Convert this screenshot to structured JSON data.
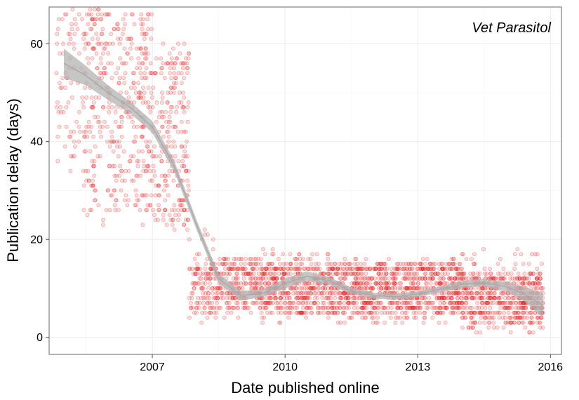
{
  "chart_data": {
    "type": "scatter",
    "title": "",
    "annotation": "Vet Parasitol",
    "xlabel": "Date published online",
    "ylabel": "Publication delay (days)",
    "xlim": [
      "2004-09-01",
      "2016-04-01"
    ],
    "ylim": [
      -3.5,
      67.5
    ],
    "x_ticks": [
      {
        "date": "2007-01-01",
        "label": "2007"
      },
      {
        "date": "2010-01-01",
        "label": "2010"
      },
      {
        "date": "2013-01-01",
        "label": "2013"
      },
      {
        "date": "2016-01-01",
        "label": "2016"
      }
    ],
    "y_ticks": [
      0,
      20,
      40,
      60
    ],
    "grid": true,
    "point_color": "#e31a1c",
    "point_alpha": 0.15,
    "smooth_line_color": "#aaaaaa",
    "smooth_band_color": "#b3b3b3",
    "smooth_fit": [
      {
        "x": "2005-01-01",
        "y": 56,
        "lo": 53,
        "hi": 59
      },
      {
        "x": "2005-07-01",
        "y": 53.5,
        "lo": 51.5,
        "hi": 55.5
      },
      {
        "x": "2006-01-01",
        "y": 50,
        "lo": 48.5,
        "hi": 51.5
      },
      {
        "x": "2006-07-01",
        "y": 47,
        "lo": 45.8,
        "hi": 48.2
      },
      {
        "x": "2007-01-01",
        "y": 43,
        "lo": 41.8,
        "hi": 44.2
      },
      {
        "x": "2007-07-01",
        "y": 35,
        "lo": 33.9,
        "hi": 36.1
      },
      {
        "x": "2008-01-01",
        "y": 23,
        "lo": 22,
        "hi": 24
      },
      {
        "x": "2008-07-01",
        "y": 12,
        "lo": 11,
        "hi": 13
      },
      {
        "x": "2009-01-01",
        "y": 8.5,
        "lo": 7.5,
        "hi": 9.5
      },
      {
        "x": "2009-07-01",
        "y": 9,
        "lo": 8.2,
        "hi": 9.8
      },
      {
        "x": "2010-01-01",
        "y": 11,
        "lo": 10,
        "hi": 12
      },
      {
        "x": "2010-07-01",
        "y": 12.5,
        "lo": 11.5,
        "hi": 13.5
      },
      {
        "x": "2011-01-01",
        "y": 11.5,
        "lo": 10.7,
        "hi": 12.3
      },
      {
        "x": "2011-07-01",
        "y": 9.5,
        "lo": 8.8,
        "hi": 10.2
      },
      {
        "x": "2012-01-01",
        "y": 8.5,
        "lo": 7.9,
        "hi": 9.1
      },
      {
        "x": "2012-07-01",
        "y": 8.3,
        "lo": 7.7,
        "hi": 8.9
      },
      {
        "x": "2013-01-01",
        "y": 8.8,
        "lo": 8.2,
        "hi": 9.4
      },
      {
        "x": "2013-07-01",
        "y": 9.8,
        "lo": 9.2,
        "hi": 10.4
      },
      {
        "x": "2014-01-01",
        "y": 10.8,
        "lo": 10.1,
        "hi": 11.5
      },
      {
        "x": "2014-07-01",
        "y": 11.2,
        "lo": 10.4,
        "hi": 12
      },
      {
        "x": "2015-01-01",
        "y": 10.3,
        "lo": 9.3,
        "hi": 11.3
      },
      {
        "x": "2015-06-01",
        "y": 8.8,
        "lo": 7.3,
        "hi": 10.3
      },
      {
        "x": "2015-11-01",
        "y": 6.5,
        "lo": 4,
        "hi": 9
      }
    ],
    "point_density": [
      {
        "from": "2004-11-01",
        "to": "2005-06-01",
        "y_range": [
          34,
          67
        ],
        "per_month": 10
      },
      {
        "from": "2005-06-01",
        "to": "2007-01-01",
        "y_range": [
          23,
          67
        ],
        "per_month": 22
      },
      {
        "from": "2007-01-01",
        "to": "2007-11-01",
        "y_range": [
          22,
          60
        ],
        "per_month": 24
      },
      {
        "from": "2007-11-01",
        "to": "2008-06-01",
        "y_range": [
          3,
          22
        ],
        "per_month": 18
      },
      {
        "from": "2008-06-01",
        "to": "2009-06-01",
        "y_range": [
          4,
          16
        ],
        "per_month": 20
      },
      {
        "from": "2009-06-01",
        "to": "2011-06-01",
        "y_range": [
          3,
          18
        ],
        "per_month": 25
      },
      {
        "from": "2011-06-01",
        "to": "2014-01-01",
        "y_range": [
          3,
          16
        ],
        "per_month": 26
      },
      {
        "from": "2014-01-01",
        "to": "2015-11-01",
        "y_range": [
          1,
          18
        ],
        "per_month": 26
      }
    ]
  }
}
